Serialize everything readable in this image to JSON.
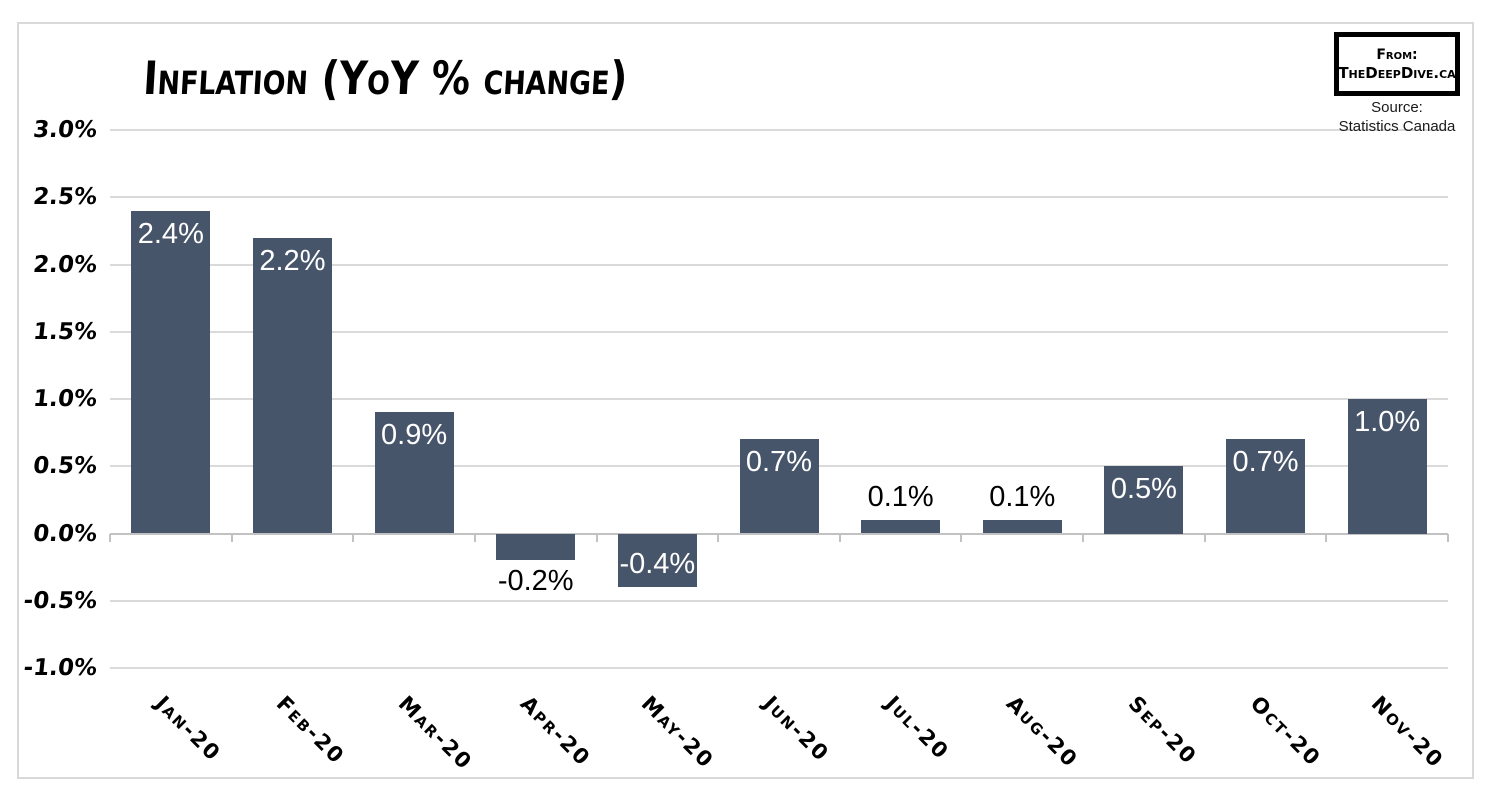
{
  "header": {
    "title": "Inflation (YoY % change)",
    "from_box": {
      "line1": "From:",
      "line2": "TheDeepDive.ca"
    },
    "source": {
      "line1": "Source:",
      "line2": "Statistics Canada"
    }
  },
  "colors": {
    "bar": "#47556A",
    "gridline": "#DADADA",
    "axis": "#C2C2C2",
    "frame_border": "#D9D9D9",
    "label_inside": "#FFFFFF",
    "label_outside": "#000000"
  },
  "chart_data": {
    "type": "bar",
    "title": "Inflation (YoY % change)",
    "categories": [
      "Jan-20",
      "Feb-20",
      "Mar-20",
      "Apr-20",
      "May-20",
      "Jun-20",
      "Jul-20",
      "Aug-20",
      "Sep-20",
      "Oct-20",
      "Nov-20"
    ],
    "values": [
      2.4,
      2.2,
      0.9,
      -0.2,
      -0.4,
      0.7,
      0.1,
      0.1,
      0.5,
      0.7,
      1.0
    ],
    "data_labels": [
      "2.4%",
      "2.2%",
      "0.9%",
      "-0.2%",
      "-0.4%",
      "0.7%",
      "0.1%",
      "0.1%",
      "0.5%",
      "0.7%",
      "1.0%"
    ],
    "ylim": [
      -1.0,
      3.0
    ],
    "ytick_step": 0.5,
    "ytick_labels": [
      "3.0%",
      "2.5%",
      "2.0%",
      "1.5%",
      "1.0%",
      "0.5%",
      "0.0%",
      "-0.5%",
      "-1.0%"
    ],
    "xlabel": "",
    "ylabel": "",
    "grid": true,
    "legend": false
  }
}
